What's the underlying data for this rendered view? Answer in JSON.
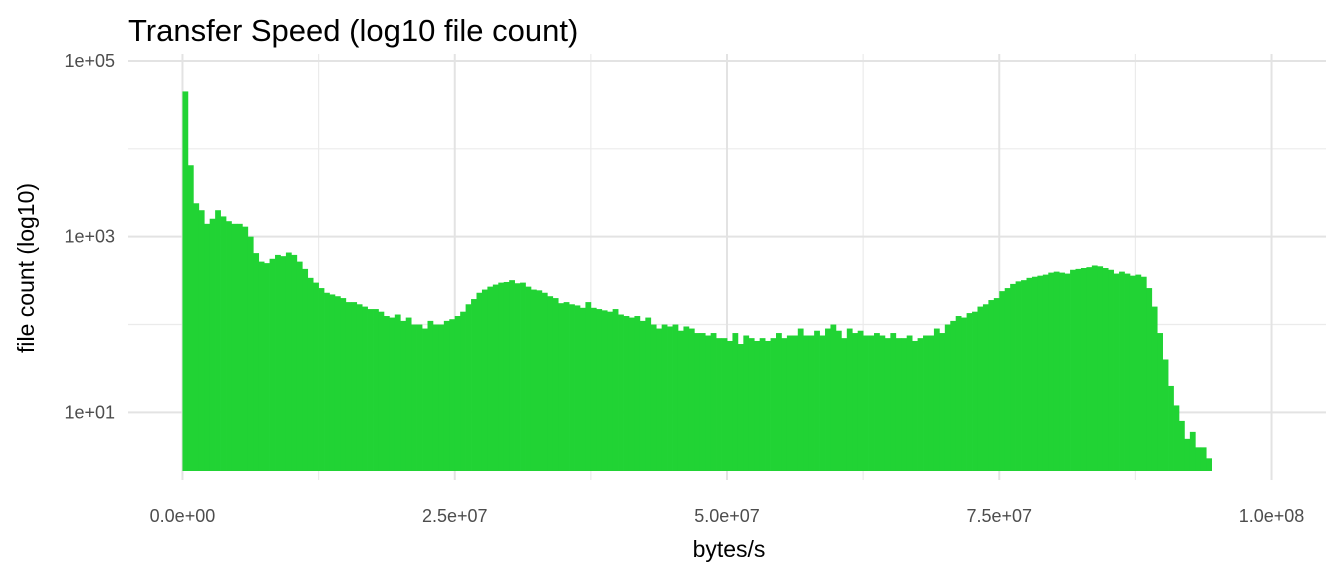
{
  "chart_data": {
    "type": "bar",
    "title": "Transfer Speed (log10 file count)",
    "xlabel": "bytes/s",
    "ylabel": "file count (log10)",
    "x_scale": "linear",
    "y_scale": "log10",
    "xlim": [
      -5000000,
      105000000
    ],
    "ylim": [
      1.7,
      120000
    ],
    "x_ticks": [
      {
        "value": 0,
        "label": "0.0e+00"
      },
      {
        "value": 25000000,
        "label": "2.5e+07"
      },
      {
        "value": 50000000,
        "label": "5.0e+07"
      },
      {
        "value": 75000000,
        "label": "7.5e+07"
      },
      {
        "value": 100000000,
        "label": "1.0e+08"
      }
    ],
    "y_ticks": [
      {
        "value": 10,
        "label": "1e+01"
      },
      {
        "value": 1000,
        "label": "1e+03"
      },
      {
        "value": 100000,
        "label": "1e+05"
      }
    ],
    "grid": true,
    "bar_color": "#21D334",
    "bin_width": 500000,
    "bin_start": 0,
    "values": [
      45000,
      6500,
      2400,
      2000,
      1400,
      1600,
      2000,
      1700,
      1500,
      1400,
      1400,
      1300,
      1000,
      650,
      520,
      500,
      560,
      620,
      600,
      660,
      620,
      520,
      430,
      340,
      300,
      260,
      230,
      220,
      210,
      200,
      180,
      180,
      170,
      160,
      150,
      150,
      140,
      125,
      120,
      130,
      110,
      120,
      100,
      100,
      90,
      110,
      100,
      100,
      110,
      115,
      125,
      140,
      170,
      195,
      230,
      250,
      270,
      285,
      300,
      305,
      320,
      295,
      300,
      270,
      250,
      245,
      230,
      210,
      200,
      175,
      180,
      170,
      165,
      155,
      180,
      155,
      150,
      145,
      140,
      150,
      130,
      125,
      120,
      125,
      110,
      120,
      100,
      90,
      100,
      95,
      100,
      85,
      95,
      90,
      80,
      80,
      75,
      80,
      70,
      70,
      65,
      80,
      60,
      75,
      70,
      65,
      70,
      65,
      70,
      80,
      70,
      75,
      75,
      90,
      75,
      75,
      85,
      75,
      90,
      100,
      85,
      70,
      90,
      80,
      85,
      75,
      75,
      80,
      75,
      70,
      80,
      70,
      70,
      75,
      65,
      70,
      75,
      75,
      90,
      80,
      100,
      110,
      125,
      120,
      135,
      140,
      160,
      170,
      190,
      200,
      240,
      260,
      290,
      310,
      320,
      340,
      350,
      360,
      370,
      390,
      400,
      390,
      380,
      420,
      430,
      440,
      450,
      470,
      460,
      440,
      420,
      380,
      400,
      380,
      360,
      370,
      350,
      260,
      160,
      80,
      40,
      20,
      12,
      8,
      5,
      6,
      4,
      4,
      3,
      2,
      2,
      null,
      null,
      null,
      null,
      null,
      null,
      2
    ]
  }
}
